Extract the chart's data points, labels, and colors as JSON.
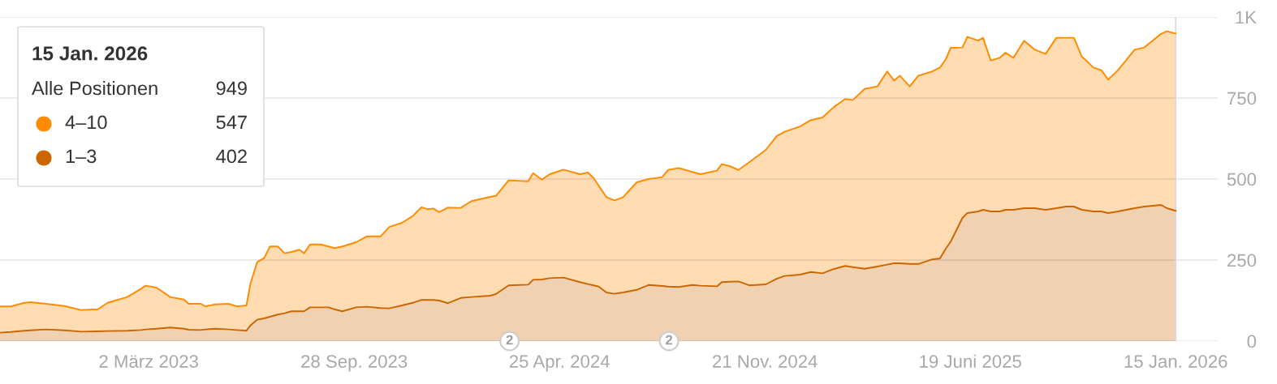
{
  "chart_data": {
    "type": "area",
    "stacked": true,
    "x": [
      "2022-10-01",
      "2022-10-12",
      "2022-10-26",
      "2022-11-01",
      "2022-11-17",
      "2022-12-06",
      "2022-12-23",
      "2023-01-09",
      "2023-01-19",
      "2023-02-08",
      "2023-02-22",
      "2023-02-27",
      "2023-03-10",
      "2023-03-24",
      "2023-04-07",
      "2023-04-12",
      "2023-04-24",
      "2023-04-29",
      "2023-05-09",
      "2023-05-23",
      "2023-05-31",
      "2023-06-10",
      "2023-06-14",
      "2023-06-21",
      "2023-06-28",
      "2023-07-04",
      "2023-07-12",
      "2023-07-19",
      "2023-07-26",
      "2023-08-03",
      "2023-08-08",
      "2023-08-14",
      "2023-08-25",
      "2023-09-02",
      "2023-09-08",
      "2023-09-16",
      "2023-09-30",
      "2023-10-11",
      "2023-10-25",
      "2023-11-03",
      "2023-11-16",
      "2023-11-27",
      "2023-12-06",
      "2023-12-12",
      "2023-12-18",
      "2023-12-24",
      "2024-01-02",
      "2024-01-15",
      "2024-01-26",
      "2024-02-14",
      "2024-02-20",
      "2024-03-04",
      "2024-03-24",
      "2024-03-29",
      "2024-04-07",
      "2024-04-15",
      "2024-04-29",
      "2024-05-16",
      "2024-05-24",
      "2024-05-30",
      "2024-06-04",
      "2024-06-12",
      "2024-06-20",
      "2024-06-29",
      "2024-07-13",
      "2024-07-25",
      "2024-08-08",
      "2024-08-14",
      "2024-08-25",
      "2024-09-08",
      "2024-09-16",
      "2024-10-03",
      "2024-10-08",
      "2024-10-16",
      "2024-10-25",
      "2024-11-05",
      "2024-11-22",
      "2024-12-03",
      "2024-12-11",
      "2024-12-27",
      "2025-01-07",
      "2025-01-19",
      "2025-01-30",
      "2025-02-11",
      "2025-02-19",
      "2025-03-03",
      "2025-03-16",
      "2025-03-26",
      "2025-04-02",
      "2025-04-08",
      "2025-04-18",
      "2025-04-27",
      "2025-05-11",
      "2025-05-19",
      "2025-05-25",
      "2025-05-30",
      "2025-06-11",
      "2025-06-16",
      "2025-06-27",
      "2025-07-02",
      "2025-07-10",
      "2025-07-19",
      "2025-07-25",
      "2025-08-02",
      "2025-08-13",
      "2025-08-24",
      "2025-09-04",
      "2025-09-15",
      "2025-09-25",
      "2025-10-03",
      "2025-10-11",
      "2025-10-23",
      "2025-10-31",
      "2025-11-07",
      "2025-11-17",
      "2025-12-04",
      "2025-12-14",
      "2025-12-31",
      "2026-01-06",
      "2026-01-15"
    ],
    "series": [
      {
        "name": "1–3",
        "color": "#cc6600",
        "values": [
          26,
          28,
          32,
          33,
          36,
          33,
          29,
          30,
          31,
          32,
          34,
          36,
          38,
          42,
          38,
          35,
          34,
          36,
          38,
          36,
          34,
          32,
          48,
          66,
          70,
          75,
          82,
          86,
          92,
          92,
          92,
          104,
          104,
          104,
          98,
          92,
          104,
          106,
          102,
          101,
          110,
          118,
          127,
          127,
          127,
          125,
          117,
          133,
          136,
          140,
          145,
          172,
          174,
          189,
          190,
          194,
          196,
          182,
          176,
          172,
          168,
          150,
          146,
          150,
          158,
          173,
          170,
          168,
          167,
          173,
          171,
          169,
          182,
          183,
          184,
          172,
          175,
          192,
          201,
          205,
          213,
          209,
          222,
          232,
          228,
          223,
          230,
          236,
          240,
          240,
          238,
          238,
          252,
          255,
          285,
          307,
          380,
          395,
          400,
          405,
          400,
          400,
          405,
          405,
          410,
          410,
          405,
          410,
          415,
          415,
          405,
          400,
          400,
          395,
          400,
          410,
          415,
          420,
          410,
          402
        ]
      },
      {
        "name": "4–10",
        "color": "#ff8c00",
        "values": [
          81,
          79,
          86,
          87,
          79,
          75,
          67,
          68,
          87,
          104,
          127,
          135,
          127,
          94,
          90,
          80,
          81,
          71,
          75,
          79,
          73,
          78,
          129,
          178,
          186,
          217,
          210,
          185,
          183,
          190,
          179,
          194,
          194,
          188,
          189,
          200,
          201,
          217,
          221,
          251,
          255,
          268,
          286,
          280,
          282,
          273,
          295,
          278,
          296,
          305,
          303,
          324,
          319,
          329,
          308,
          321,
          333,
          333,
          344,
          331,
          312,
          294,
          288,
          294,
          332,
          327,
          336,
          360,
          367,
          349,
          344,
          357,
          364,
          357,
          344,
          380,
          415,
          440,
          445,
          457,
          469,
          481,
          499,
          515,
          516,
          555,
          556,
          596,
          564,
          579,
          548,
          581,
          580,
          589,
          585,
          598,
          526,
          544,
          527,
          531,
          466,
          474,
          485,
          469,
          517,
          489,
          481,
          526,
          521,
          521,
          473,
          444,
          436,
          412,
          436,
          489,
          491,
          528,
          546,
          547
        ]
      }
    ],
    "xlim": [
      "2022-10-01",
      "2026-02-27"
    ],
    "xticks": [
      {
        "value": "2023-03-02",
        "label": "2 März 2023"
      },
      {
        "value": "2023-09-28",
        "label": "28 Sep. 2023"
      },
      {
        "value": "2024-04-25",
        "label": "25 Apr. 2024"
      },
      {
        "value": "2024-11-21",
        "label": "21 Nov. 2024"
      },
      {
        "value": "2025-06-19",
        "label": "19 Juni 2025"
      },
      {
        "value": "2026-01-15",
        "label": "15 Jan. 2026"
      }
    ],
    "ylim": [
      0,
      1000
    ],
    "yticks": [
      0,
      250,
      500,
      750,
      {
        "value": 1000,
        "label": "1K"
      }
    ],
    "grid": "y",
    "legend": "top left",
    "legend_title": "15 Jan. 2026",
    "ref_lines": [
      {
        "axis": "x",
        "value": "2026-01-15",
        "color": "#d9d9d9"
      }
    ],
    "annotations": [
      "Alle Positionen",
      "949",
      "547",
      "402",
      {
        "text": "2",
        "x": "2024-03-05"
      },
      {
        "text": "2",
        "x": "2024-08-15"
      }
    ]
  }
}
